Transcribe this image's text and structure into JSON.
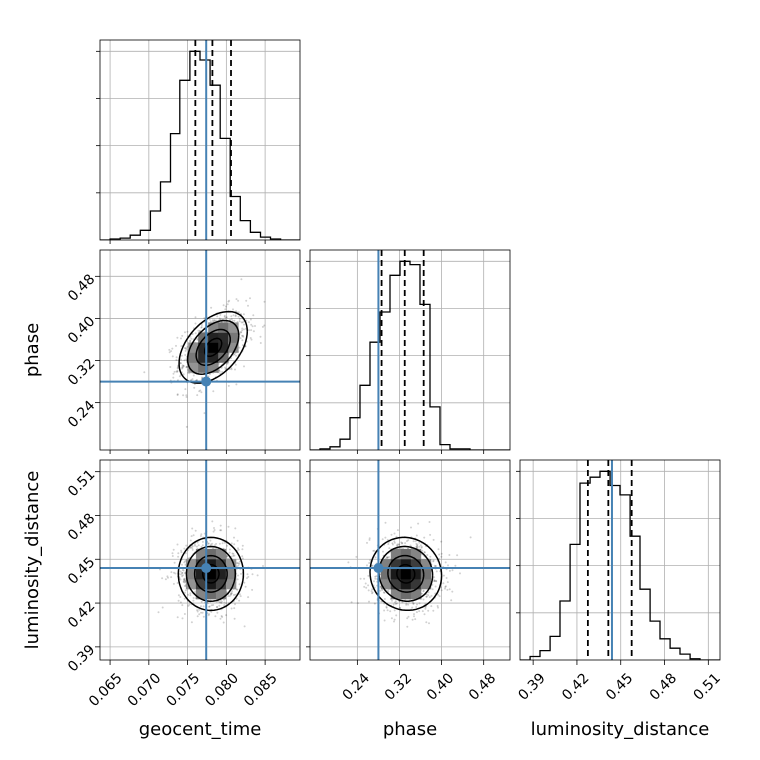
{
  "chart_data": {
    "type": "corner",
    "parameters": [
      "geocent_time",
      "phase",
      "luminosity_distance"
    ],
    "truth": {
      "geocent_time": 0.0774,
      "phase": 0.28,
      "luminosity_distance": 0.444
    },
    "truth_color": "#4682b4",
    "axes": {
      "geocent_time": {
        "range": [
          0.0637,
          0.0895
        ],
        "ticks": [
          "0.065",
          "0.070",
          "0.075",
          "0.080",
          "0.085"
        ]
      },
      "phase": {
        "range": [
          0.15,
          0.53
        ],
        "ticks": [
          "0.24",
          "0.32",
          "0.40",
          "0.48"
        ]
      },
      "luminosity_distance": {
        "range": [
          0.381,
          0.518
        ],
        "ticks": [
          "0.39",
          "0.42",
          "0.45",
          "0.48",
          "0.51"
        ]
      }
    },
    "histograms": [
      {
        "parameter": "geocent_time",
        "bin_edges": [
          0.0637,
          0.065,
          0.0663,
          0.0676,
          0.0689,
          0.0702,
          0.0715,
          0.0728,
          0.074,
          0.0753,
          0.0766,
          0.0779,
          0.0792,
          0.0805,
          0.0818,
          0.0831,
          0.0844,
          0.0857,
          0.087,
          0.0882,
          0.0895
        ],
        "counts": [
          0,
          1,
          2,
          5,
          10,
          30,
          60,
          110,
          165,
          195,
          186,
          160,
          105,
          45,
          20,
          8,
          3,
          1,
          0,
          0
        ],
        "quantiles": [
          0.076,
          0.0782,
          0.0806
        ]
      },
      {
        "parameter": "phase",
        "bin_edges": [
          0.15,
          0.169,
          0.188,
          0.207,
          0.226,
          0.245,
          0.264,
          0.283,
          0.302,
          0.321,
          0.34,
          0.359,
          0.378,
          0.397,
          0.416,
          0.435,
          0.454,
          0.473,
          0.492,
          0.511,
          0.53
        ],
        "counts": [
          0,
          1,
          3,
          10,
          30,
          60,
          100,
          128,
          162,
          175,
          172,
          135,
          40,
          5,
          1,
          1,
          0,
          0,
          0,
          0
        ],
        "quantiles": [
          0.286,
          0.33,
          0.366
        ]
      },
      {
        "parameter": "luminosity_distance",
        "bin_edges": [
          0.381,
          0.3879,
          0.3947,
          0.4016,
          0.4084,
          0.4153,
          0.4221,
          0.429,
          0.4358,
          0.4427,
          0.4495,
          0.4564,
          0.4632,
          0.4701,
          0.4769,
          0.4838,
          0.4906,
          0.4975,
          0.5043,
          0.5112,
          0.518
        ],
        "counts": [
          0,
          3,
          8,
          20,
          50,
          98,
          150,
          155,
          160,
          148,
          140,
          105,
          60,
          33,
          18,
          10,
          5,
          1,
          0,
          0
        ],
        "quantiles": [
          0.4275,
          0.4415,
          0.4575
        ]
      }
    ],
    "joint": [
      {
        "x": "geocent_time",
        "y": "phase",
        "mean": [
          0.0783,
          0.345
        ],
        "sd": [
          0.0022,
          0.034
        ],
        "corr": 0.45
      },
      {
        "x": "geocent_time",
        "y": "luminosity_distance",
        "mean": [
          0.078,
          0.44
        ],
        "sd": [
          0.0021,
          0.0125
        ],
        "corr": 0.0
      },
      {
        "x": "phase",
        "y": "luminosity_distance",
        "mean": [
          0.332,
          0.44
        ],
        "sd": [
          0.034,
          0.0125
        ],
        "corr": -0.05
      }
    ],
    "contour_levels": [
      0.5,
      1.0,
      1.5,
      2.0
    ],
    "grid": true
  }
}
